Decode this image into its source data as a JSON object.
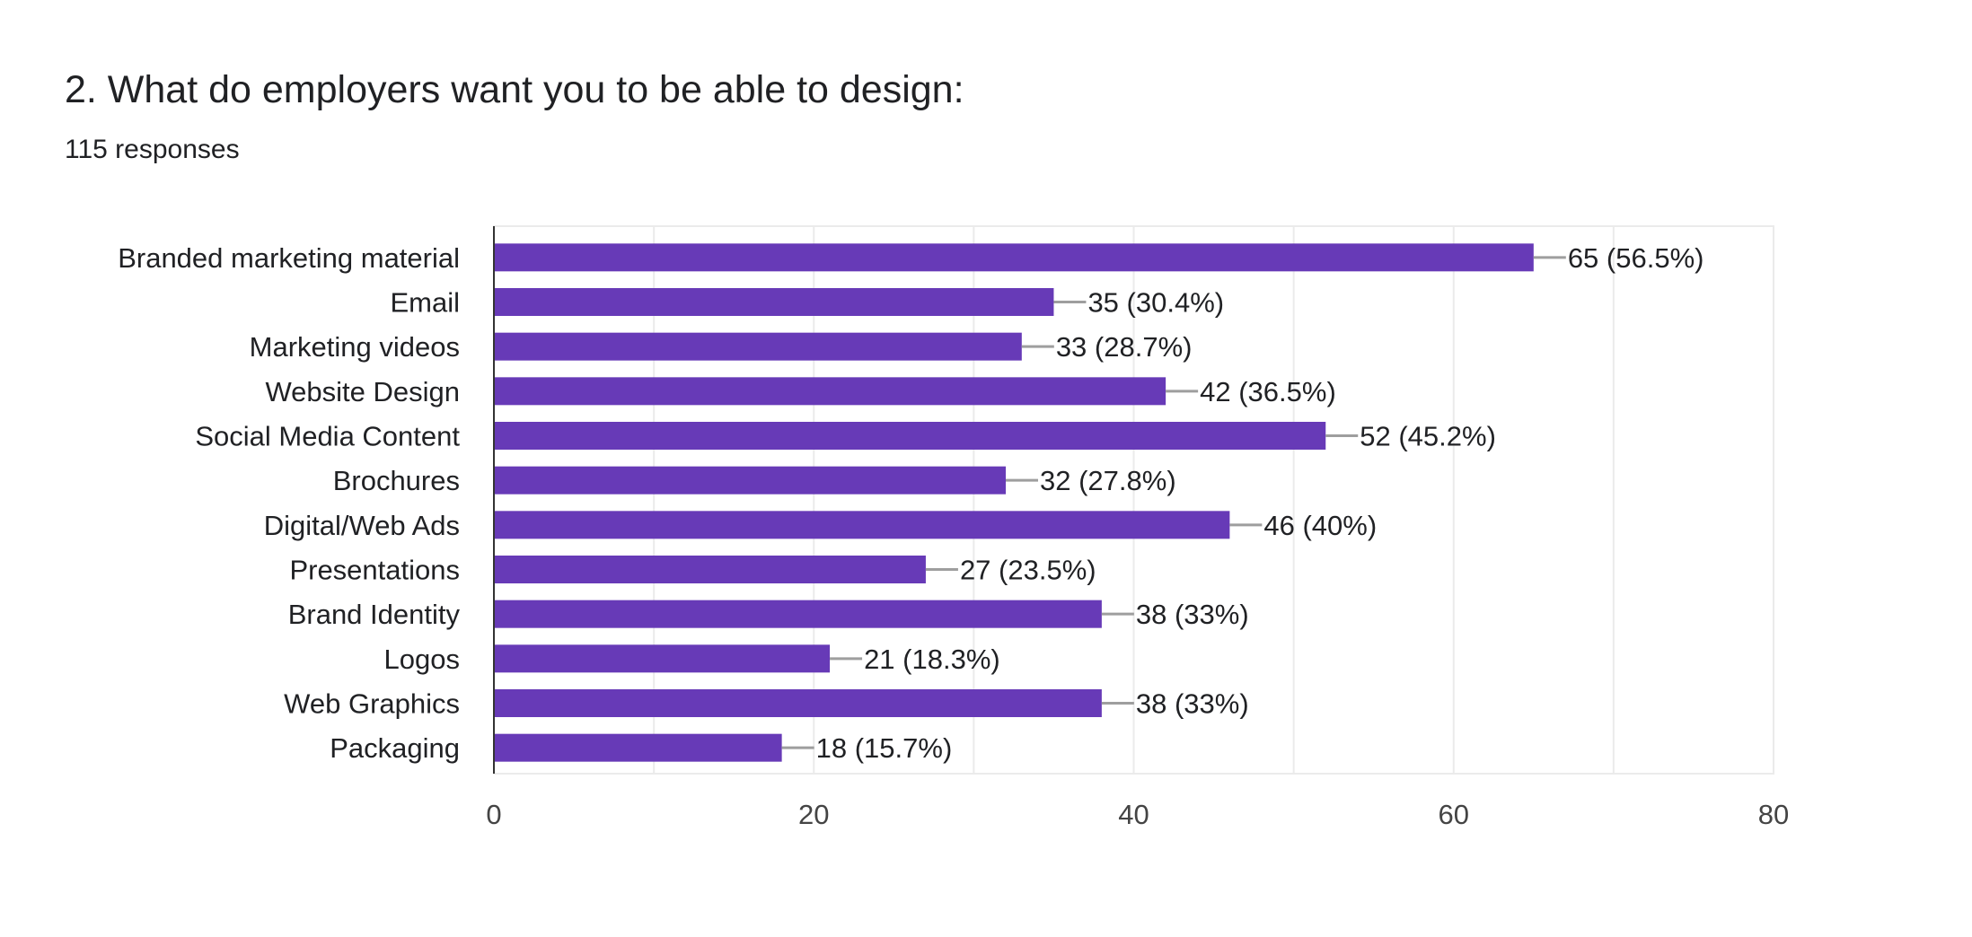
{
  "title": "2. What do employers want you to be able to design:",
  "subtitle": "115 responses",
  "chart_data": {
    "type": "bar",
    "orientation": "horizontal",
    "categories": [
      "Branded marketing material",
      "Email",
      "Marketing videos",
      "Website Design",
      "Social Media Content",
      "Brochures",
      "Digital/Web Ads",
      "Presentations",
      "Brand Identity",
      "Logos",
      "Web Graphics",
      "Packaging"
    ],
    "values": [
      65,
      35,
      33,
      42,
      52,
      32,
      46,
      27,
      38,
      21,
      38,
      18
    ],
    "data_labels": [
      "65 (56.5%)",
      "35 (30.4%)",
      "33 (28.7%)",
      "42 (36.5%)",
      "52 (45.2%)",
      "32 (27.8%)",
      "46 (40%)",
      "27 (23.5%)",
      "38 (33%)",
      "21 (18.3%)",
      "38 (33%)",
      "18 (15.7%)"
    ],
    "xlim": [
      0,
      80
    ],
    "xticks": [
      "0",
      "20",
      "40",
      "60",
      "80"
    ],
    "grid": true,
    "bar_color": "#673ab7"
  }
}
